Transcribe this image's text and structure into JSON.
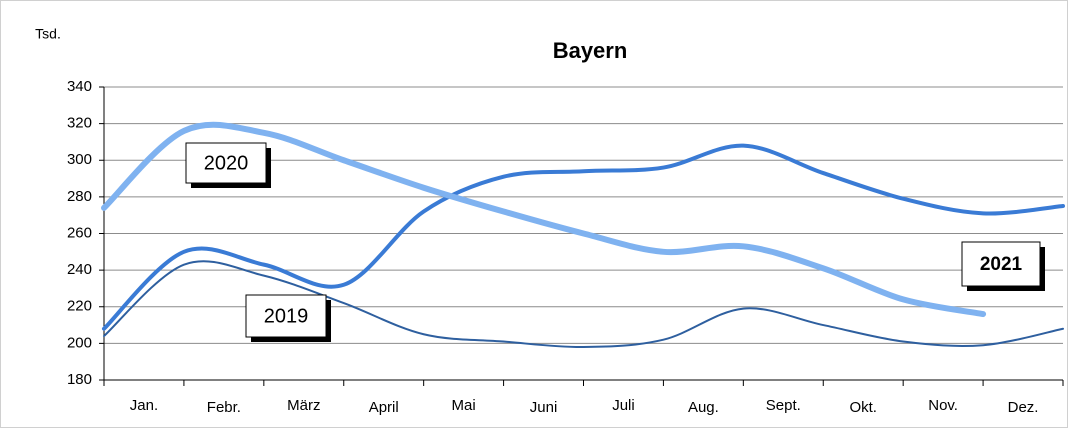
{
  "chart_data": {
    "type": "line",
    "title": "Bayern",
    "y_label": "Tsd.",
    "categories": [
      "Jan.",
      "Febr.",
      "März",
      "April",
      "Mai",
      "Juni",
      "Juli",
      "Aug.",
      "Sept.",
      "Okt.",
      "Nov.",
      "Dez.",
      null
    ],
    "series": [
      {
        "name": "2021",
        "color": "#3a7bd5",
        "values": [
          208,
          250,
          243,
          232,
          272,
          291,
          294,
          296,
          308,
          293,
          279,
          271,
          275
        ]
      },
      {
        "name": "2020",
        "color": "#7fb2f0",
        "values": [
          274,
          316,
          315,
          300,
          285,
          272,
          260,
          250,
          253,
          241,
          224,
          216,
          null
        ]
      },
      {
        "name": "2019",
        "color": "#2e5f9f",
        "values": [
          204,
          243,
          237,
          222,
          205,
          201,
          198,
          202,
          219,
          210,
          201,
          199,
          208
        ]
      }
    ],
    "ylim": [
      180,
      340
    ],
    "yticks": [
      180,
      200,
      220,
      240,
      260,
      280,
      300,
      320,
      340
    ],
    "grid": true
  }
}
